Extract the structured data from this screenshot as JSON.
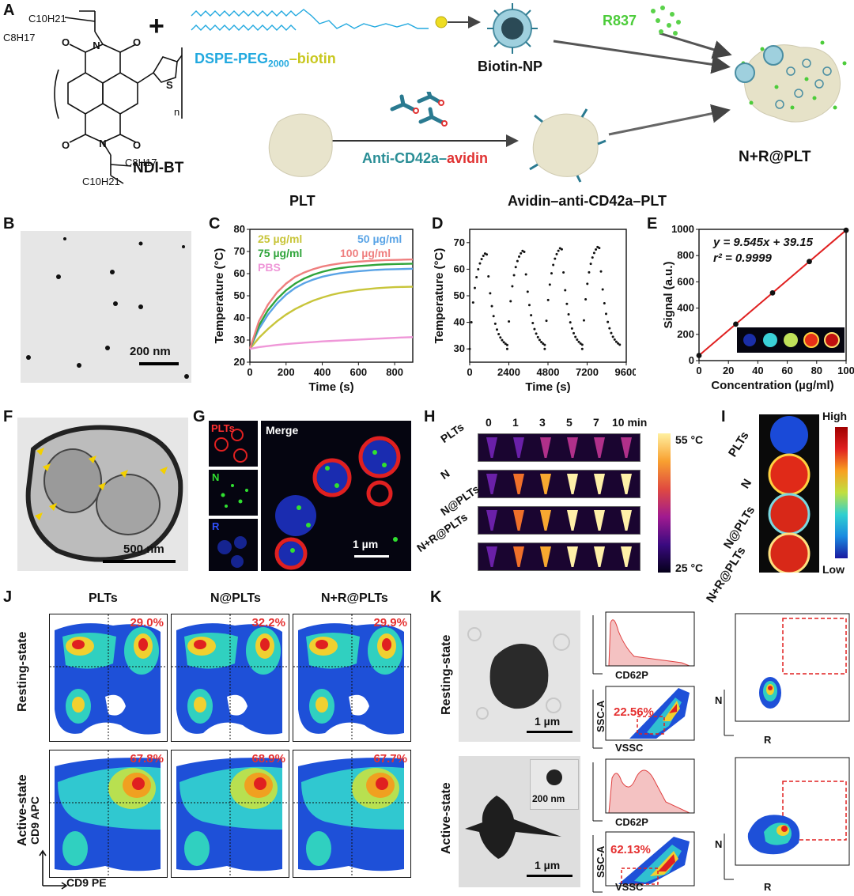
{
  "panels": {
    "A": "A",
    "B": "B",
    "C": "C",
    "D": "D",
    "E": "E",
    "F": "F",
    "G": "G",
    "H": "H",
    "I": "I",
    "J": "J",
    "K": "K"
  },
  "panelA": {
    "mol_name": "NDI-BT",
    "sub_c10": "C10H21",
    "sub_c8": "C8H17",
    "n_label": "n",
    "plus": "+",
    "dspe_text": "DSPE-PEG",
    "dspe_sub": "2000",
    "dspe_biotin": "–biotin",
    "biotin_np": "Biotin-NP",
    "r837": "R837",
    "plt": "PLT",
    "anti_text": "Anti-CD42a–",
    "anti_avidin": "avidin",
    "avidin_plt": "Avidin–anti-CD42a–PLT",
    "product": "N+R@PLT",
    "colors": {
      "dspe": "#22a9df",
      "biotin": "#c9c820",
      "r837": "#4ccc3a",
      "anti": "#2a8e96",
      "avidin": "#e03232"
    }
  },
  "panelB": {
    "scale": "200 nm"
  },
  "panelC": {
    "ylabel": "Temperature (°C)",
    "xlabel": "Time (s)",
    "legend": [
      {
        "text": "25 µg/ml",
        "color": "#c8c53a"
      },
      {
        "text": "50 µg/ml",
        "color": "#5aa4e6"
      },
      {
        "text": "75 µg/ml",
        "color": "#2fa43a"
      },
      {
        "text": "100 µg/ml",
        "color": "#ef7f7f"
      },
      {
        "text": "PBS",
        "color": "#ef97d8"
      }
    ]
  },
  "panelD": {
    "ylabel": "Temperature (°C)",
    "xlabel": "Time (s)"
  },
  "panelE": {
    "ylabel": "Signal (a.u.)",
    "xlabel": "Concentration (µg/ml)",
    "equation": "y = 9.545x + 39.15",
    "r2": "r² = 0.9999"
  },
  "panelF": {
    "scale": "500 nm"
  },
  "panelG": {
    "plts": "PLTs",
    "n": "N",
    "r": "R",
    "merge": "Merge",
    "scale": "1 µm"
  },
  "panelH": {
    "times": [
      "0",
      "1",
      "3",
      "5",
      "7",
      "10 min"
    ],
    "rows": [
      "PLTs",
      "N",
      "N@PLTs",
      "N+R@PLTs"
    ],
    "cb_high": "55 °C",
    "cb_low": "25 °C"
  },
  "panelI": {
    "rows": [
      "PLTs",
      "N",
      "N@PLTs",
      "N+R@PLTs"
    ],
    "high": "High",
    "low": "Low"
  },
  "panelJ": {
    "cols": [
      "PLTs",
      "N@PLTs",
      "N+R@PLTs"
    ],
    "rows": [
      "Resting-state",
      "Active-state"
    ],
    "pct_rest": [
      "29.0%",
      "32.2%",
      "29.9%"
    ],
    "pct_active": [
      "67.8%",
      "68.9%",
      "67.7%"
    ],
    "yaxis": "CD9 APC",
    "xaxis": "CD9 PE"
  },
  "panelK": {
    "rows": [
      "Resting-state",
      "Active-state"
    ],
    "scale_1um": "1 µm",
    "scale_200": "200 nm",
    "cd62p": "CD62P",
    "ssca": "SSC-A",
    "vssc": "VSSC",
    "pct_rest": "22.56%",
    "pct_active": "62.13%",
    "n_axis": "N",
    "r_axis": "R"
  },
  "chart_data": [
    {
      "type": "line",
      "panel": "C",
      "xlabel": "Time (s)",
      "ylabel": "Temperature (°C)",
      "xlim": [
        0,
        900
      ],
      "ylim": [
        20,
        80
      ],
      "xticks": [
        0,
        200,
        400,
        600,
        800
      ],
      "yticks": [
        20,
        30,
        40,
        50,
        60,
        70,
        80
      ],
      "x": [
        0,
        50,
        100,
        150,
        200,
        250,
        300,
        350,
        400,
        450,
        500,
        550,
        600,
        650,
        700,
        750,
        800,
        850,
        900
      ],
      "series": [
        {
          "name": "25 µg/ml",
          "values": [
            26,
            31,
            35,
            38.5,
            41.5,
            44,
            46,
            47.8,
            49.2,
            50.4,
            51.3,
            52,
            52.6,
            53,
            53.4,
            53.7,
            53.9,
            54,
            54.1
          ]
        },
        {
          "name": "50 µg/ml",
          "values": [
            26,
            35,
            41.5,
            46.5,
            50.5,
            53.5,
            55.7,
            57.3,
            58.6,
            59.5,
            60.2,
            60.7,
            61.1,
            61.4,
            61.7,
            61.9,
            62,
            62.1,
            62.2
          ]
        },
        {
          "name": "75 µg/ml",
          "values": [
            26,
            36.5,
            43.5,
            48.5,
            52.5,
            55.5,
            57.8,
            59.5,
            60.8,
            61.8,
            62.5,
            63,
            63.4,
            63.7,
            64,
            64.2,
            64.3,
            64.4,
            64.5
          ]
        },
        {
          "name": "100 µg/ml",
          "values": [
            26,
            38.5,
            46,
            51.5,
            55.5,
            58.5,
            60.5,
            62,
            63.2,
            64,
            64.6,
            65.1,
            65.4,
            65.7,
            65.9,
            66.1,
            66.2,
            66.3,
            66.4
          ]
        },
        {
          "name": "PBS",
          "values": [
            26,
            26.8,
            27.3,
            27.8,
            28.2,
            28.5,
            28.8,
            29.1,
            29.4,
            29.6,
            29.8,
            30,
            30.2,
            30.4,
            30.6,
            30.8,
            31,
            31.2,
            31.3
          ]
        }
      ]
    },
    {
      "type": "line",
      "panel": "D",
      "xlabel": "Time (s)",
      "ylabel": "Temperature (°C)",
      "xlim": [
        0,
        9600
      ],
      "ylim": [
        25,
        75
      ],
      "xticks": [
        0,
        2400,
        4800,
        7200,
        9600
      ],
      "yticks": [
        30,
        40,
        50,
        60,
        70
      ],
      "cycles": 4,
      "cycle_peaks": [
        66.5,
        67.5,
        68.5,
        69
      ],
      "baseline": 30,
      "start": 30
    },
    {
      "type": "scatter",
      "panel": "E",
      "xlabel": "Concentration (µg/ml)",
      "ylabel": "Signal (a.u.)",
      "xlim": [
        0,
        100
      ],
      "ylim": [
        0,
        1000
      ],
      "xticks": [
        0,
        20,
        40,
        60,
        80,
        100
      ],
      "yticks": [
        0,
        200,
        400,
        600,
        800,
        1000
      ],
      "x": [
        0,
        25,
        50,
        75,
        100
      ],
      "values": [
        39,
        278,
        516,
        755,
        993
      ],
      "fit": {
        "slope": 9.545,
        "intercept": 39.15,
        "r2": 0.9999
      }
    }
  ]
}
